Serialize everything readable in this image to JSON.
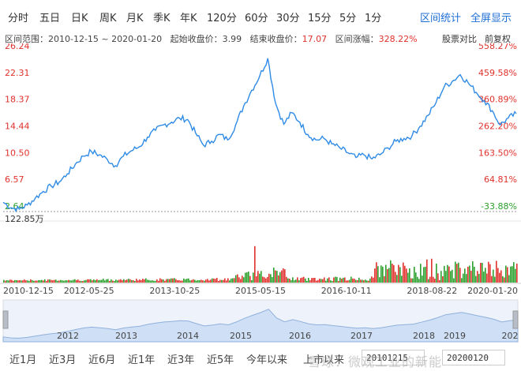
{
  "period_tabs": [
    "分时",
    "五日",
    "日K",
    "周K",
    "月K",
    "季K",
    "年K",
    "120分",
    "60分",
    "30分",
    "15分",
    "5分",
    "1分"
  ],
  "actions": {
    "range_stats": "区间统计",
    "fullscreen": "全屏显示"
  },
  "range_info": {
    "range_label": "区间范围：",
    "range_value": "2010-12-15 ~ 2020-01-20",
    "start_label": "起始收盘价：",
    "start_value": "3.99",
    "end_label": "结束收盘价：",
    "end_value": "17.07",
    "change_label": "区间涨幅：",
    "change_value": "328.22%"
  },
  "range_right": {
    "compare": "股票对比",
    "adjust": "前复权"
  },
  "colors": {
    "price_line": "#2f8be6",
    "up": "#e0312c",
    "down": "#2ca02c",
    "accent": "#1f6fd6",
    "navigator": "#cfe0f6"
  },
  "chart_data": {
    "type": "line",
    "y_left_ticks": [
      "26.24",
      "22.31",
      "18.37",
      "14.44",
      "10.50",
      "6.57",
      "2.64"
    ],
    "y_right_ticks": [
      "558.27%",
      "459.58%",
      "360.89%",
      "262.20%",
      "163.50%",
      "64.81%",
      "-33.88%"
    ],
    "ylim": [
      2.64,
      26.24
    ],
    "x_tick_labels": [
      "2010-12-15",
      "2012-05-25",
      "2013-10-25",
      "2015-05-15",
      "2016-10-11",
      "2018-08-22",
      "2020-01-20"
    ],
    "series": [
      {
        "values": [
          4.0,
          3.2,
          3.0,
          3.6,
          4.6,
          5.6,
          6.4,
          7.0,
          8.2,
          9.6,
          10.8,
          11.5,
          11.0,
          10.3,
          9.4,
          10.8,
          11.6,
          12.2,
          13.6,
          14.6,
          15.4,
          15.8,
          16.4,
          16.2,
          14.2,
          12.4,
          13.0,
          14.0,
          13.2,
          15.4,
          18.2,
          20.5,
          22.6,
          25.2,
          18.5,
          15.5,
          17.2,
          15.8,
          14.0,
          13.2,
          13.4,
          12.6,
          12.0,
          11.3,
          10.6,
          11.0,
          10.4,
          11.0,
          12.0,
          13.0,
          13.4,
          13.8,
          15.2,
          16.8,
          18.7,
          21.0,
          21.8,
          22.8,
          21.6,
          20.2,
          19.0,
          17.5,
          15.4,
          16.4,
          17.07
        ]
      }
    ],
    "volume": {
      "max_label": "122.85万",
      "x_tick_labels": [
        "2010-12-15",
        "2012-05-25",
        "2013-10-25",
        "2015-05-15",
        "2016-10-11",
        "2018-08-22",
        "2020-01-20"
      ]
    },
    "navigator_years": [
      "2012",
      "2013",
      "2014",
      "2015",
      "2016",
      "2017",
      "2018",
      "2019",
      "202"
    ]
  },
  "quick_ranges": [
    "近1月",
    "近3月",
    "近6月",
    "近1年",
    "近3年",
    "近5年",
    "今年以来",
    "上市以来"
  ],
  "date_inputs": {
    "start": "20101215",
    "end": "20200120"
  },
  "watermark": "雪球：微观工业的新能"
}
